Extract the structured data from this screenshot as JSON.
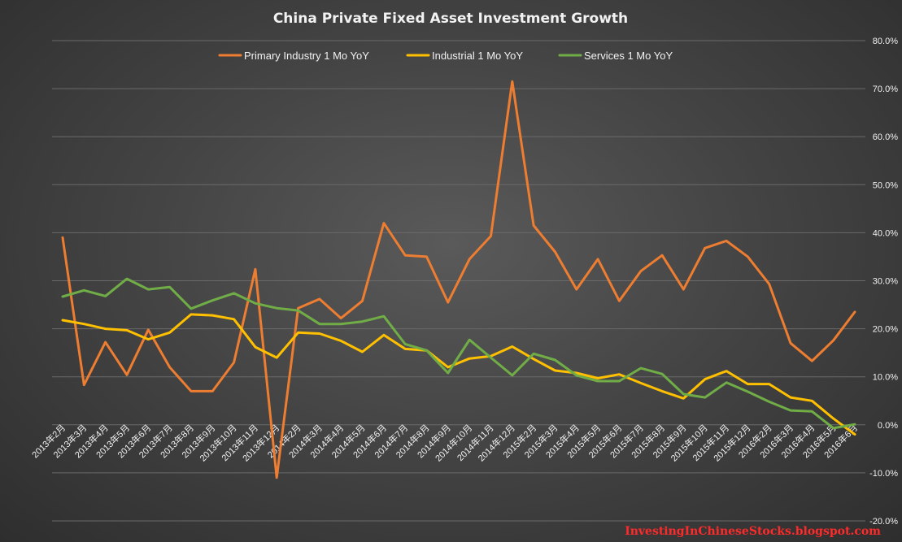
{
  "chart_data": {
    "type": "line",
    "title": "China Private Fixed Asset Investment Growth",
    "ylim": [
      -20,
      80
    ],
    "y_ticks": [
      "80.0%",
      "70.0%",
      "60.0%",
      "50.0%",
      "40.0%",
      "30.0%",
      "20.0%",
      "10.0%",
      "0.0%",
      "-10.0%",
      "-20.0%"
    ],
    "y_tick_values": [
      80,
      70,
      60,
      50,
      40,
      30,
      20,
      10,
      0,
      -10,
      -20
    ],
    "grid": true,
    "legend_position": "top",
    "categories": [
      "2013年2月",
      "2013年3月",
      "2013年4月",
      "2013年5月",
      "2013年6月",
      "2013年7月",
      "2013年8月",
      "2013年9月",
      "2013年10月",
      "2013年11月",
      "2013年12月",
      "2014年2月",
      "2014年3月",
      "2014年4月",
      "2014年5月",
      "2014年6月",
      "2014年7月",
      "2014年8月",
      "2014年9月",
      "2014年10月",
      "2014年11月",
      "2014年12月",
      "2015年2月",
      "2015年3月",
      "2015年4月",
      "2015年5月",
      "2015年6月",
      "2015年7月",
      "2015年8月",
      "2015年9月",
      "2015年10月",
      "2015年11月",
      "2015年12月",
      "2016年2月",
      "2016年3月",
      "2016年4月",
      "2016年5月",
      "2016年6月"
    ],
    "series": [
      {
        "name": "Primary Industry 1 Mo YoY",
        "color": "#ed7d31",
        "values": [
          39.0,
          8.3,
          17.2,
          10.4,
          19.8,
          12.0,
          7.0,
          7.0,
          13.0,
          32.4,
          -11.0,
          24.3,
          26.2,
          22.2,
          25.8,
          42.0,
          35.3,
          35.0,
          25.5,
          34.5,
          39.3,
          71.5,
          41.5,
          36.0,
          28.2,
          34.5,
          25.8,
          32.0,
          35.3,
          28.2,
          36.8,
          38.3,
          35.0,
          29.3,
          17.0,
          13.3,
          17.6,
          23.5
        ]
      },
      {
        "name": "Industrial 1 Mo YoY",
        "color": "#ffc000",
        "values": [
          21.8,
          21.0,
          20.0,
          19.7,
          17.8,
          19.2,
          23.0,
          22.8,
          22.0,
          16.2,
          14.0,
          19.2,
          19.0,
          17.5,
          15.2,
          18.7,
          15.8,
          15.5,
          12.0,
          13.8,
          14.3,
          16.3,
          13.7,
          11.3,
          10.8,
          9.7,
          10.5,
          8.7,
          7.0,
          5.5,
          9.5,
          11.2,
          8.5,
          8.5,
          5.7,
          5.0,
          1.3,
          -2.0
        ]
      },
      {
        "name": "Services 1 Mo YoY",
        "color": "#70ad47",
        "values": [
          26.7,
          28.0,
          26.8,
          30.4,
          28.2,
          28.7,
          24.2,
          25.9,
          27.4,
          25.3,
          24.3,
          23.8,
          21.0,
          21.0,
          21.5,
          22.6,
          16.8,
          15.5,
          10.8,
          17.7,
          14.0,
          10.3,
          14.8,
          13.5,
          10.3,
          9.1,
          9.1,
          11.8,
          10.6,
          6.4,
          5.7,
          8.8,
          6.9,
          4.8,
          3.0,
          2.8,
          -0.7,
          0.1
        ]
      }
    ]
  },
  "watermark": "InvestingInChineseStocks.blogspot.com"
}
